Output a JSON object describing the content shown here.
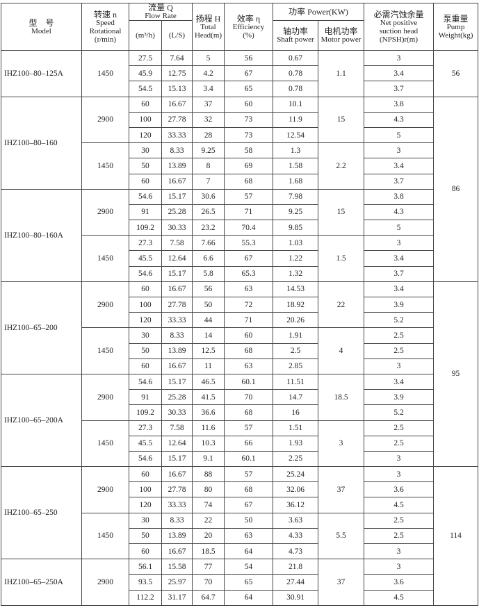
{
  "header": {
    "model": [
      "型　号",
      "Model"
    ],
    "speed": [
      "转速 n",
      "Speed",
      "Rotational",
      "(r/min)"
    ],
    "flow": [
      "流量 Q",
      "Flow Rate"
    ],
    "flow_m3h": "(m³/h)",
    "flow_ls": "(L/S)",
    "head": [
      "扬程 H",
      "Total",
      "Head(m)"
    ],
    "efficiency": [
      "效率 η",
      "Efficiency",
      "(%)"
    ],
    "power": "功率 Power(KW)",
    "shaft_power": [
      "轴功率",
      "Shaft power"
    ],
    "motor_power": [
      "电机功率",
      "Motor power"
    ],
    "npsh": [
      "必需汽蚀余量",
      "Net positive",
      "suction head",
      "(NPSH)r(m)"
    ],
    "weight": [
      "泵重量",
      "Pump",
      "Weight(kg)"
    ]
  },
  "models": [
    {
      "name": "IHZ100–80–125A",
      "weight": 56,
      "groups": [
        {
          "speed": 1450,
          "motor_power": 1.1,
          "rows": [
            [
              27.5,
              7.64,
              5,
              56,
              0.67,
              3
            ],
            [
              45.9,
              12.75,
              4.2,
              67,
              0.78,
              3.4
            ],
            [
              54.5,
              15.13,
              3.4,
              65,
              0.78,
              3.7
            ]
          ]
        }
      ]
    },
    {
      "name": "IHZ100–80–160",
      "weight": 86,
      "groups": [
        {
          "speed": 2900,
          "motor_power": 15,
          "rows": [
            [
              60,
              16.67,
              37,
              60,
              10.1,
              3.8
            ],
            [
              100,
              27.78,
              32,
              73,
              11.9,
              4.3
            ],
            [
              120,
              33.33,
              28,
              73,
              12.54,
              5
            ]
          ]
        },
        {
          "speed": 1450,
          "motor_power": 2.2,
          "rows": [
            [
              30,
              8.33,
              9.25,
              58,
              1.3,
              3
            ],
            [
              50,
              13.89,
              8,
              69,
              1.58,
              3.4
            ],
            [
              60,
              16.67,
              7,
              68,
              1.68,
              3.7
            ]
          ]
        }
      ]
    },
    {
      "name": "IHZ100–80–160A",
      "groups": [
        {
          "speed": 2900,
          "motor_power": 15,
          "rows": [
            [
              54.6,
              15.17,
              30.6,
              57,
              7.98,
              3.8
            ],
            [
              91,
              25.28,
              26.5,
              71,
              9.25,
              4.3
            ],
            [
              109.2,
              30.33,
              23.2,
              70.4,
              9.85,
              5
            ]
          ]
        },
        {
          "speed": 1450,
          "motor_power": 1.5,
          "rows": [
            [
              27.3,
              7.58,
              7.66,
              55.3,
              1.03,
              3
            ],
            [
              45.5,
              12.64,
              6.6,
              67,
              1.22,
              3.4
            ],
            [
              54.6,
              15.17,
              5.8,
              65.3,
              1.32,
              3.7
            ]
          ]
        }
      ]
    },
    {
      "name": "IHZ100–65–200",
      "weight": 95,
      "groups": [
        {
          "speed": 2900,
          "motor_power": 22,
          "rows": [
            [
              60,
              16.67,
              56,
              63,
              14.53,
              3.4
            ],
            [
              100,
              27.78,
              50,
              72,
              18.92,
              3.9
            ],
            [
              120,
              33.33,
              44,
              71,
              20.26,
              5.2
            ]
          ]
        },
        {
          "speed": 1450,
          "motor_power": 4,
          "rows": [
            [
              30,
              8.33,
              14,
              60,
              1.91,
              2.5
            ],
            [
              50,
              13.89,
              12.5,
              68,
              2.5,
              2.5
            ],
            [
              60,
              16.67,
              11,
              63,
              2.85,
              3
            ]
          ]
        }
      ]
    },
    {
      "name": "IHZ100–65–200A",
      "groups": [
        {
          "speed": 2900,
          "motor_power": 18.5,
          "rows": [
            [
              54.6,
              15.17,
              46.5,
              60.1,
              11.51,
              3.4
            ],
            [
              91,
              25.28,
              41.5,
              70,
              14.7,
              3.9
            ],
            [
              109.2,
              30.33,
              36.6,
              68,
              16,
              5.2
            ]
          ]
        },
        {
          "speed": 1450,
          "motor_power": 3,
          "rows": [
            [
              27.3,
              7.58,
              11.6,
              57,
              1.51,
              2.5
            ],
            [
              45.5,
              12.64,
              10.3,
              66,
              1.93,
              2.5
            ],
            [
              54.6,
              15.17,
              9.1,
              60.1,
              2.25,
              3
            ]
          ]
        }
      ]
    },
    {
      "name": "IHZ100–65–250",
      "weight": 114,
      "groups": [
        {
          "speed": 2900,
          "motor_power": 37,
          "rows": [
            [
              60,
              16.67,
              88,
              57,
              25.24,
              3
            ],
            [
              100,
              27.78,
              80,
              68,
              32.06,
              3.6
            ],
            [
              120,
              33.33,
              74,
              67,
              36.12,
              4.5
            ]
          ]
        },
        {
          "speed": 1450,
          "motor_power": 5.5,
          "rows": [
            [
              30,
              8.33,
              22,
              50,
              3.63,
              2.5
            ],
            [
              50,
              13.89,
              20,
              63,
              4.33,
              2.5
            ],
            [
              60,
              16.67,
              18.5,
              64,
              4.73,
              3
            ]
          ]
        }
      ]
    },
    {
      "name": "IHZ100–65–250A",
      "groups": [
        {
          "speed": 2900,
          "motor_power": 37,
          "rows": [
            [
              56.1,
              15.58,
              77,
              54,
              21.8,
              3
            ],
            [
              93.5,
              25.97,
              70,
              65,
              27.44,
              3.6
            ],
            [
              112.2,
              31.17,
              64.7,
              64,
              30.91,
              4.5
            ]
          ]
        }
      ]
    }
  ]
}
